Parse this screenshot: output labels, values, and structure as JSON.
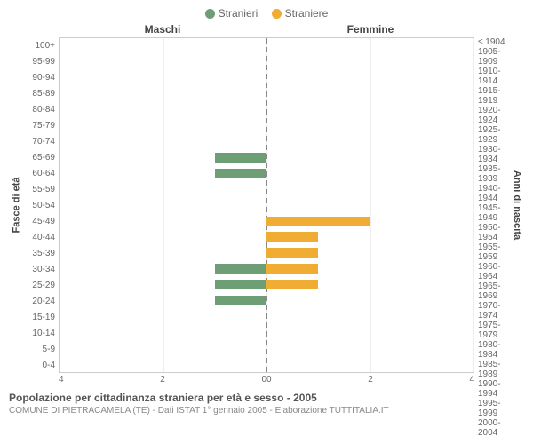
{
  "chart": {
    "type": "population-pyramid",
    "legend": [
      {
        "label": "Stranieri",
        "color": "#6e9e75"
      },
      {
        "label": "Straniere",
        "color": "#f0ad33"
      }
    ],
    "header_left": "Maschi",
    "header_right": "Femmine",
    "ylabel_left": "Fasce di età",
    "ylabel_right": "Anni di nascita",
    "xmax": 4,
    "xticks_left": [
      "4",
      "2",
      "0"
    ],
    "xticks_right": [
      "0",
      "2",
      "4"
    ],
    "grid_vlines_pct": [
      0,
      25,
      50,
      75,
      100
    ],
    "rows": [
      {
        "age": "100+",
        "birth": "≤ 1904",
        "m": 0,
        "f": 0
      },
      {
        "age": "95-99",
        "birth": "1905-1909",
        "m": 0,
        "f": 0
      },
      {
        "age": "90-94",
        "birth": "1910-1914",
        "m": 0,
        "f": 0
      },
      {
        "age": "85-89",
        "birth": "1915-1919",
        "m": 0,
        "f": 0
      },
      {
        "age": "80-84",
        "birth": "1920-1924",
        "m": 0,
        "f": 0
      },
      {
        "age": "75-79",
        "birth": "1925-1929",
        "m": 0,
        "f": 0
      },
      {
        "age": "70-74",
        "birth": "1930-1934",
        "m": 0,
        "f": 0
      },
      {
        "age": "65-69",
        "birth": "1935-1939",
        "m": 1,
        "f": 0
      },
      {
        "age": "60-64",
        "birth": "1940-1944",
        "m": 1,
        "f": 0
      },
      {
        "age": "55-59",
        "birth": "1945-1949",
        "m": 0,
        "f": 0
      },
      {
        "age": "50-54",
        "birth": "1950-1954",
        "m": 0,
        "f": 0
      },
      {
        "age": "45-49",
        "birth": "1955-1959",
        "m": 0,
        "f": 2
      },
      {
        "age": "40-44",
        "birth": "1960-1964",
        "m": 0,
        "f": 1
      },
      {
        "age": "35-39",
        "birth": "1965-1969",
        "m": 0,
        "f": 1
      },
      {
        "age": "30-34",
        "birth": "1970-1974",
        "m": 1,
        "f": 1
      },
      {
        "age": "25-29",
        "birth": "1975-1979",
        "m": 1,
        "f": 1
      },
      {
        "age": "20-24",
        "birth": "1980-1984",
        "m": 1,
        "f": 0
      },
      {
        "age": "15-19",
        "birth": "1985-1989",
        "m": 0,
        "f": 0
      },
      {
        "age": "10-14",
        "birth": "1990-1994",
        "m": 0,
        "f": 0
      },
      {
        "age": "5-9",
        "birth": "1995-1999",
        "m": 0,
        "f": 0
      },
      {
        "age": "0-4",
        "birth": "2000-2004",
        "m": 0,
        "f": 0
      }
    ],
    "colors": {
      "male": "#6e9e75",
      "female": "#f0ad33",
      "grid": "#eeeeee",
      "center": "#888888",
      "border": "#cccccc",
      "bg": "#ffffff"
    },
    "bar_height_pct": 60,
    "caption": "Popolazione per cittadinanza straniera per età e sesso - 2005",
    "subcaption": "COMUNE DI PIETRACAMELA (TE) - Dati ISTAT 1° gennaio 2005 - Elaborazione TUTTITALIA.IT"
  }
}
